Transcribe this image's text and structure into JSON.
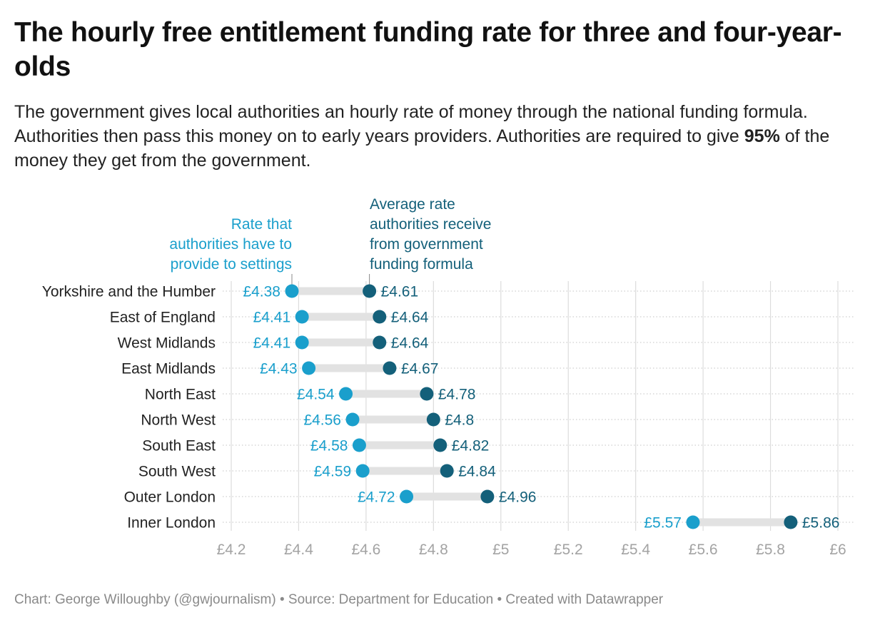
{
  "title": "The hourly free entitlement funding rate for three and four-year-olds",
  "subtitle": {
    "part1": "The government gives local authorities an hourly rate of money through the national funding formula. Authorities then pass this money on to early years providers. Authorities are required to give ",
    "bold": "95%",
    "part2": " of the money they get from the government."
  },
  "footer": "Chart: George Willoughby (@gwjournalism) • Source: Department for Education • Created with Datawrapper",
  "colors": {
    "provided": "#1a9fcc",
    "received": "#14607a",
    "range_bar": "#e2e2e2",
    "grid": "#dcdcdc"
  },
  "chart_data": {
    "type": "range-dot",
    "currency_prefix": "£",
    "xlim": [
      4.2,
      6.0
    ],
    "x_ticks": [
      4.2,
      4.4,
      4.6,
      4.8,
      5.0,
      5.2,
      5.4,
      5.6,
      5.8,
      6.0
    ],
    "x_tick_labels": [
      "£4.2",
      "£4.4",
      "£4.6",
      "£4.8",
      "£5",
      "£5.2",
      "£5.4",
      "£5.6",
      "£5.8",
      "£6"
    ],
    "grid": true,
    "series": [
      {
        "name": "Rate that authorities have to provide to settings",
        "key": "provided"
      },
      {
        "name": "Average rate authorities receive from government funding formula",
        "key": "received"
      }
    ],
    "annotations": {
      "provided": [
        "Rate that",
        "authorities have to",
        "provide to settings"
      ],
      "received": [
        "Average rate",
        "authorities receive",
        "from government",
        "funding formula"
      ]
    },
    "rows": [
      {
        "label": "Yorkshire and the Humber",
        "provided": 4.38,
        "received": 4.61,
        "provided_label": "£4.38",
        "received_label": "£4.61"
      },
      {
        "label": "East of England",
        "provided": 4.41,
        "received": 4.64,
        "provided_label": "£4.41",
        "received_label": "£4.64"
      },
      {
        "label": "West Midlands",
        "provided": 4.41,
        "received": 4.64,
        "provided_label": "£4.41",
        "received_label": "£4.64"
      },
      {
        "label": "East Midlands",
        "provided": 4.43,
        "received": 4.67,
        "provided_label": "£4.43",
        "received_label": "£4.67"
      },
      {
        "label": "North East",
        "provided": 4.54,
        "received": 4.78,
        "provided_label": "£4.54",
        "received_label": "£4.78"
      },
      {
        "label": "North West",
        "provided": 4.56,
        "received": 4.8,
        "provided_label": "£4.56",
        "received_label": "£4.8"
      },
      {
        "label": "South East",
        "provided": 4.58,
        "received": 4.82,
        "provided_label": "£4.58",
        "received_label": "£4.82"
      },
      {
        "label": "South West",
        "provided": 4.59,
        "received": 4.84,
        "provided_label": "£4.59",
        "received_label": "£4.84"
      },
      {
        "label": "Outer London",
        "provided": 4.72,
        "received": 4.96,
        "provided_label": "£4.72",
        "received_label": "£4.96"
      },
      {
        "label": "Inner London",
        "provided": 5.57,
        "received": 5.86,
        "provided_label": "£5.57",
        "received_label": "£5.86"
      }
    ]
  }
}
